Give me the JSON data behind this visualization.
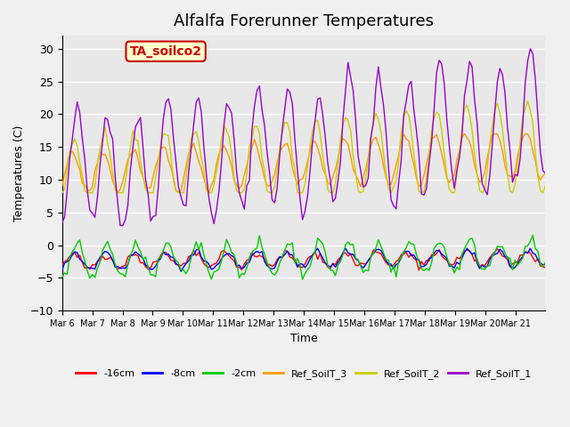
{
  "title": "Alfalfa Forerunner Temperatures",
  "xlabel": "Time",
  "ylabel": "Temperatures (C)",
  "ylim": [
    -10,
    32
  ],
  "yticks": [
    -10,
    -5,
    0,
    5,
    10,
    15,
    20,
    25,
    30
  ],
  "xtick_positions": [
    0,
    1,
    2,
    3,
    4,
    5,
    6,
    7,
    8,
    9,
    10,
    11,
    12,
    13,
    14,
    15
  ],
  "xtick_labels": [
    "Mar 6",
    "Mar 7",
    "Mar 8",
    "Mar 9",
    "Mar 10",
    "Mar 11",
    "Mar 12",
    "Mar 13",
    "Mar 14",
    "Mar 15",
    "Mar 16",
    "Mar 17",
    "Mar 18",
    "Mar 19",
    "Mar 20",
    "Mar 21"
  ],
  "xlim": [
    0,
    16
  ],
  "legend_labels": [
    "-16cm",
    "-8cm",
    "-2cm",
    "Ref_SoilT_3",
    "Ref_SoilT_2",
    "Ref_SoilT_1"
  ],
  "legend_colors": [
    "#ff0000",
    "#0000ff",
    "#00cc00",
    "#ff9900",
    "#cccc00",
    "#9900cc"
  ],
  "annotation_text": "TA_soilco2",
  "annotation_color": "#cc0000",
  "annotation_bg": "#ffffcc",
  "bg_color": "#e8e8e8",
  "fig_color": "#f0f0f0",
  "title_fontsize": 13,
  "n_days": 16,
  "pts_per_day": 12
}
